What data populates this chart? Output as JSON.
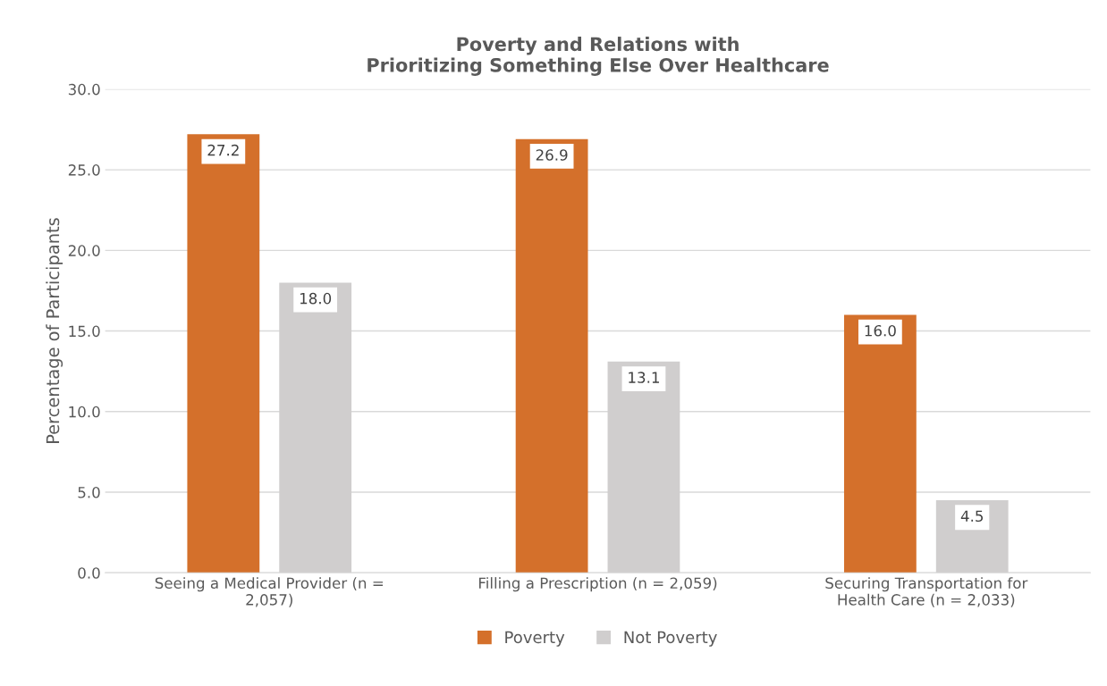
{
  "chart_data": {
    "type": "bar",
    "title": "Poverty and Relations with\nPrioritizing Something Else Over Healthcare",
    "ylabel": "Percentage of Participants",
    "categories": [
      "Seeing a Medical Provider (n =\n2,057)",
      "Filling a Prescription (n = 2,059)",
      "Securing Transportation for\nHealth Care (n = 2,033)"
    ],
    "series": [
      {
        "name": "Poverty",
        "color": "#d4702b",
        "values": [
          27.2,
          26.9,
          16.0
        ],
        "value_labels": [
          "27.2",
          "26.9",
          "16.0"
        ]
      },
      {
        "name": "Not Poverty",
        "color": "#d0cece",
        "values": [
          18.0,
          13.1,
          4.5
        ],
        "value_labels": [
          "18.0",
          "13.1",
          "4.5"
        ]
      }
    ],
    "ylim": [
      0,
      30
    ],
    "yticks": [
      {
        "value": 0,
        "label": "0.0"
      },
      {
        "value": 5,
        "label": "5.0"
      },
      {
        "value": 10,
        "label": "10.0"
      },
      {
        "value": 15,
        "label": "15.0"
      },
      {
        "value": 20,
        "label": "20.0"
      },
      {
        "value": 25,
        "label": "25.0"
      },
      {
        "value": 30,
        "label": "30.0"
      }
    ],
    "grid": "y",
    "legend": "bottom"
  }
}
